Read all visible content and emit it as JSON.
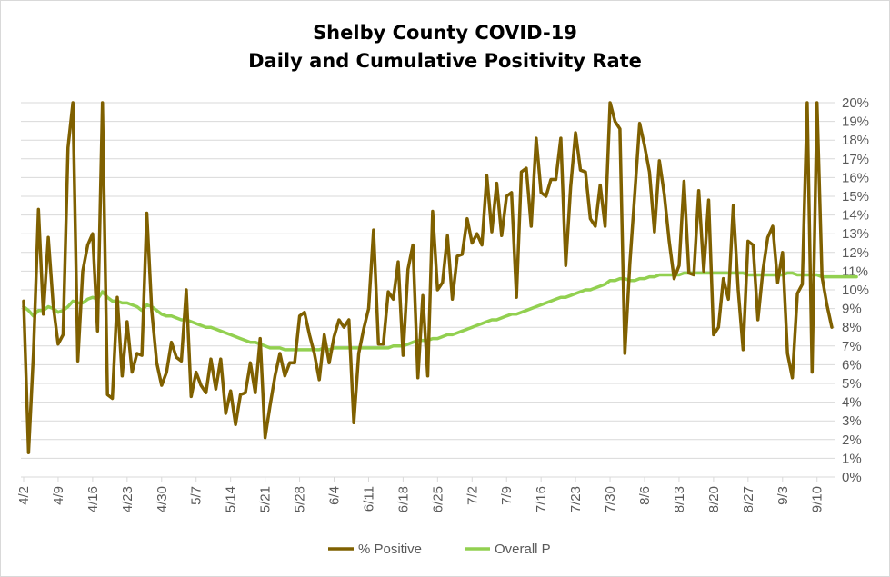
{
  "chart_data": {
    "type": "line",
    "title_line1": "Shelby County COVID-19",
    "title_line2": "Daily and Cumulative Positivity Rate",
    "xlabel": "",
    "ylabel": "",
    "ylim": [
      0,
      20
    ],
    "y_ticks": [
      "0%",
      "1%",
      "2%",
      "3%",
      "4%",
      "5%",
      "6%",
      "7%",
      "8%",
      "9%",
      "10%",
      "11%",
      "12%",
      "13%",
      "14%",
      "15%",
      "16%",
      "17%",
      "18%",
      "19%",
      "20%"
    ],
    "x_ticks": [
      "4/2",
      "4/9",
      "4/16",
      "4/23",
      "4/30",
      "5/7",
      "5/14",
      "5/21",
      "5/28",
      "6/4",
      "6/11",
      "6/18",
      "6/25",
      "7/2",
      "7/9",
      "7/16",
      "7/23",
      "7/30",
      "8/6",
      "8/13",
      "8/20",
      "8/27",
      "9/3",
      "9/10"
    ],
    "start_label": "4/2",
    "grid": true,
    "legend_position": "bottom",
    "series": [
      {
        "name": "% Positive",
        "color": "#7f6000",
        "values": [
          9.4,
          1.3,
          6.6,
          14.3,
          8.7,
          12.8,
          9.2,
          7.1,
          7.6,
          17.6,
          20,
          6.2,
          11.0,
          12.4,
          13.0,
          7.8,
          20,
          4.4,
          4.2,
          9.6,
          5.4,
          8.3,
          5.6,
          6.6,
          6.5,
          14.1,
          8.9,
          6.1,
          4.9,
          5.6,
          7.2,
          6.4,
          6.2,
          10.0,
          4.3,
          5.6,
          4.9,
          4.5,
          6.3,
          4.7,
          6.3,
          3.4,
          4.6,
          2.8,
          4.4,
          4.5,
          6.1,
          4.5,
          7.4,
          2.1,
          3.8,
          5.4,
          6.6,
          5.4,
          6.1,
          6.1,
          8.6,
          8.8,
          7.6,
          6.6,
          5.2,
          7.6,
          6.1,
          7.5,
          8.4,
          8.0,
          8.4,
          2.9,
          6.6,
          7.9,
          9.0,
          13.2,
          7.1,
          7.1,
          9.9,
          9.5,
          11.5,
          6.5,
          11.1,
          12.4,
          5.3,
          9.7,
          5.4,
          14.2,
          10.0,
          10.4,
          12.9,
          9.5,
          11.8,
          11.9,
          13.8,
          12.5,
          13.0,
          12.4,
          16.1,
          13.1,
          15.7,
          12.9,
          15.0,
          15.2,
          9.6,
          16.3,
          16.5,
          13.4,
          18.1,
          15.2,
          15.0,
          15.9,
          15.9,
          18.1,
          11.3,
          15.5,
          18.4,
          16.4,
          16.3,
          13.8,
          13.4,
          15.6,
          13.4,
          20,
          19.0,
          18.6,
          6.6,
          11.4,
          15.1,
          18.9,
          17.7,
          16.3,
          13.1,
          16.9,
          15.1,
          12.6,
          10.6,
          11.3,
          15.8,
          10.9,
          10.8,
          15.3,
          11.0,
          14.8,
          7.6,
          8.0,
          10.6,
          9.5,
          14.5,
          10.0,
          6.8,
          12.6,
          12.4,
          8.4,
          11.0,
          12.8,
          13.4,
          10.4,
          12.0,
          6.6,
          5.3,
          9.8,
          10.3,
          20,
          5.6,
          20,
          10.7,
          9.2,
          8.0
        ],
        "note": ""
      },
      {
        "name": "Overall P",
        "color": "#92d050",
        "values": [
          9.1,
          8.9,
          8.6,
          8.9,
          8.9,
          9.1,
          9.0,
          8.8,
          8.9,
          9.1,
          9.4,
          9.3,
          9.3,
          9.5,
          9.6,
          9.5,
          9.9,
          9.6,
          9.4,
          9.4,
          9.3,
          9.3,
          9.2,
          9.1,
          8.9,
          9.2,
          9.1,
          8.9,
          8.7,
          8.6,
          8.6,
          8.5,
          8.4,
          8.4,
          8.3,
          8.2,
          8.1,
          8.0,
          8.0,
          7.9,
          7.8,
          7.7,
          7.6,
          7.5,
          7.4,
          7.3,
          7.2,
          7.2,
          7.1,
          7.0,
          6.9,
          6.9,
          6.9,
          6.8,
          6.8,
          6.8,
          6.8,
          6.8,
          6.8,
          6.8,
          6.8,
          6.9,
          6.8,
          6.9,
          6.9,
          6.9,
          6.9,
          6.9,
          6.9,
          6.9,
          6.9,
          6.9,
          6.9,
          6.9,
          6.9,
          7.0,
          7.0,
          7.0,
          7.1,
          7.2,
          7.3,
          7.3,
          7.3,
          7.4,
          7.4,
          7.5,
          7.6,
          7.6,
          7.7,
          7.8,
          7.9,
          8.0,
          8.1,
          8.2,
          8.3,
          8.4,
          8.4,
          8.5,
          8.6,
          8.7,
          8.7,
          8.8,
          8.9,
          9.0,
          9.1,
          9.2,
          9.3,
          9.4,
          9.5,
          9.6,
          9.6,
          9.7,
          9.8,
          9.9,
          10.0,
          10.0,
          10.1,
          10.2,
          10.3,
          10.5,
          10.5,
          10.6,
          10.6,
          10.5,
          10.5,
          10.6,
          10.6,
          10.7,
          10.7,
          10.8,
          10.8,
          10.8,
          10.8,
          10.8,
          10.9,
          10.9,
          10.9,
          10.9,
          10.9,
          10.9,
          10.9,
          10.9,
          10.9,
          10.9,
          10.9,
          10.9,
          10.9,
          10.8,
          10.8,
          10.8,
          10.8,
          10.8,
          10.8,
          10.8,
          10.8,
          10.9,
          10.9,
          10.8,
          10.8,
          10.8,
          10.8,
          10.8,
          10.7,
          10.7,
          10.7,
          10.7,
          10.7,
          10.7,
          10.7,
          10.7
        ]
      }
    ]
  }
}
